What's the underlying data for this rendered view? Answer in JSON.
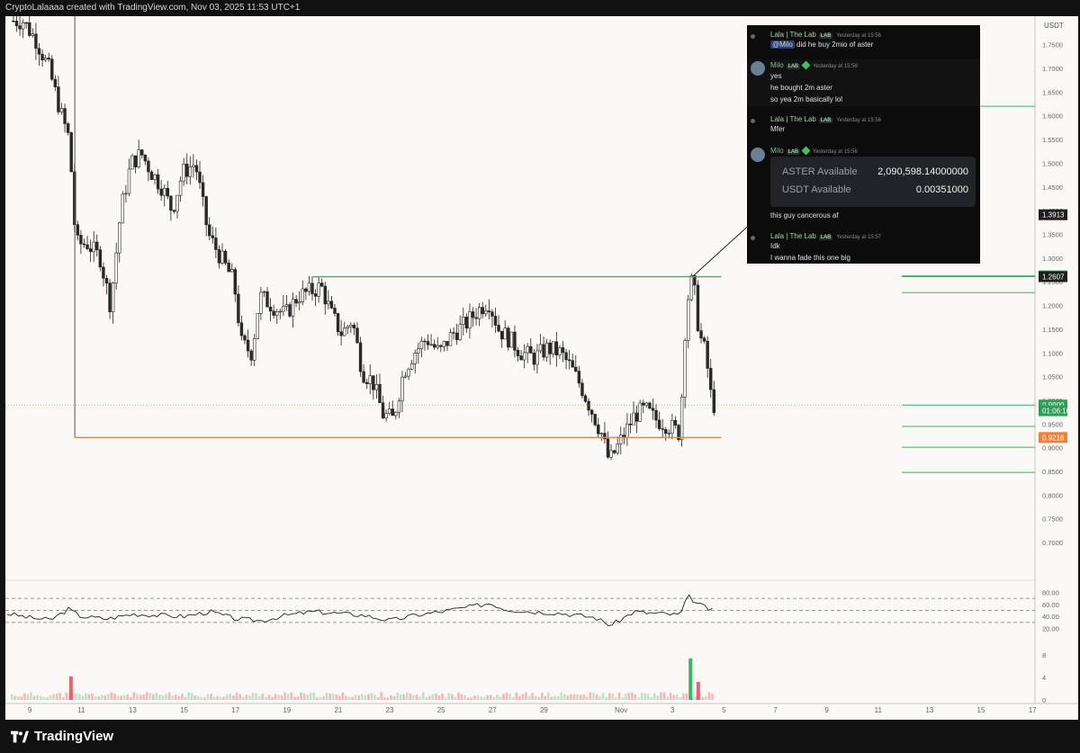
{
  "header": {
    "text": "CryptoLalaaaa created with TradingView.com, Nov 03, 2025 11:53 UTC+1"
  },
  "footer": {
    "brand": "TradingView"
  },
  "chart_data": {
    "type": "candlestick",
    "title": "",
    "y_axis_unit": "USDT",
    "ylim": [
      0.63,
      1.81
    ],
    "y_ticks": [
      "1.7500",
      "1.7000",
      "1.6500",
      "1.6000",
      "1.5500",
      "1.5000",
      "1.4500",
      "1.4000",
      "1.3500",
      "1.3000",
      "1.2500",
      "1.2000",
      "1.1500",
      "1.1000",
      "1.0500",
      "1.0000",
      "0.9500",
      "0.9000",
      "0.8500",
      "0.8000",
      "0.7500",
      "0.7000"
    ],
    "x_ticks": [
      {
        "label": "9",
        "day": 9
      },
      {
        "label": "11",
        "day": 11
      },
      {
        "label": "13",
        "day": 13
      },
      {
        "label": "15",
        "day": 15
      },
      {
        "label": "17",
        "day": 17
      },
      {
        "label": "19",
        "day": 19
      },
      {
        "label": "21",
        "day": 21
      },
      {
        "label": "23",
        "day": 23
      },
      {
        "label": "25",
        "day": 25
      },
      {
        "label": "27",
        "day": 27
      },
      {
        "label": "29",
        "day": 29
      },
      {
        "label": "Nov",
        "day": 32
      },
      {
        "label": "3",
        "day": 34
      },
      {
        "label": "5",
        "day": 36
      },
      {
        "label": "7",
        "day": 38
      },
      {
        "label": "9",
        "day": 40
      },
      {
        "label": "11",
        "day": 42
      },
      {
        "label": "13",
        "day": 44
      },
      {
        "label": "15",
        "day": 46
      },
      {
        "label": "17",
        "day": 48
      }
    ],
    "x_range_days": [
      8.05,
      48.1
    ],
    "price_key_points": [
      [
        8.3,
        1.8
      ],
      [
        8.8,
        1.8
      ],
      [
        9.3,
        1.76
      ],
      [
        9.8,
        1.7
      ],
      [
        10.3,
        1.6
      ],
      [
        10.6,
        1.55
      ],
      [
        10.85,
        1.33
      ],
      [
        11.3,
        1.33
      ],
      [
        11.8,
        1.3
      ],
      [
        12.2,
        1.2
      ],
      [
        12.6,
        1.4
      ],
      [
        13.0,
        1.5
      ],
      [
        13.4,
        1.52
      ],
      [
        13.8,
        1.48
      ],
      [
        14.2,
        1.45
      ],
      [
        14.6,
        1.4
      ],
      [
        15.0,
        1.48
      ],
      [
        15.5,
        1.5
      ],
      [
        16.0,
        1.35
      ],
      [
        16.5,
        1.3
      ],
      [
        17.0,
        1.25
      ],
      [
        17.3,
        1.12
      ],
      [
        17.7,
        1.1
      ],
      [
        18.0,
        1.22
      ],
      [
        18.5,
        1.2
      ],
      [
        19.0,
        1.18
      ],
      [
        19.5,
        1.22
      ],
      [
        20.0,
        1.23
      ],
      [
        20.4,
        1.24
      ],
      [
        20.8,
        1.18
      ],
      [
        21.2,
        1.14
      ],
      [
        21.6,
        1.17
      ],
      [
        22.0,
        1.06
      ],
      [
        22.4,
        1.04
      ],
      [
        22.8,
        0.97
      ],
      [
        23.2,
        0.96
      ],
      [
        23.6,
        1.06
      ],
      [
        24.0,
        1.1
      ],
      [
        24.5,
        1.13
      ],
      [
        25.0,
        1.1
      ],
      [
        25.5,
        1.14
      ],
      [
        26.0,
        1.16
      ],
      [
        26.5,
        1.19
      ],
      [
        26.9,
        1.21
      ],
      [
        27.3,
        1.15
      ],
      [
        27.7,
        1.13
      ],
      [
        28.2,
        1.1
      ],
      [
        28.7,
        1.09
      ],
      [
        29.2,
        1.11
      ],
      [
        29.7,
        1.1
      ],
      [
        30.1,
        1.07
      ],
      [
        30.5,
        1.03
      ],
      [
        30.9,
        0.98
      ],
      [
        31.3,
        0.93
      ],
      [
        31.6,
        0.87
      ],
      [
        31.9,
        0.9
      ],
      [
        32.2,
        0.93
      ],
      [
        32.6,
        0.97
      ],
      [
        33.0,
        0.98
      ],
      [
        33.4,
        0.96
      ],
      [
        33.8,
        0.95
      ],
      [
        34.1,
        0.94
      ],
      [
        34.35,
        0.93
      ],
      [
        34.6,
        1.2
      ],
      [
        34.85,
        1.26
      ],
      [
        35.1,
        1.14
      ],
      [
        35.35,
        1.1
      ],
      [
        35.6,
        0.99
      ]
    ],
    "horizontal_lines": [
      {
        "from_day": 20.0,
        "to_day": 35.9,
        "price": 1.2607,
        "color": "#3ab36b"
      },
      {
        "from_day": 10.75,
        "to_day": 35.9,
        "price": 0.9216,
        "color": "#e8823f"
      }
    ],
    "vertical_line": {
      "day": 10.75,
      "from_price": 0.9216,
      "to_price": 1.81
    },
    "right_levels": [
      1.62,
      1.2624,
      1.2607,
      1.227,
      0.99,
      0.945,
      0.901,
      0.848
    ],
    "price_labels": [
      {
        "text": "1.3913",
        "price": 1.3913,
        "bg": "#1e1e1e",
        "fg": "#ffffff"
      },
      {
        "text": "1.2624",
        "price": 1.2624,
        "bg": "#2e9d55",
        "fg": "#ffffff"
      },
      {
        "text": "1.2607",
        "price": 1.2607,
        "bg": "#1e1e1e",
        "fg": "#ffffff"
      },
      {
        "text": "0.9900",
        "price": 0.99,
        "bg": "#2e9d55",
        "fg": "#ffffff"
      },
      {
        "text": "01:06:10",
        "price": 0.978,
        "bg": "#2e9d55",
        "fg": "#ffffff"
      },
      {
        "text": "0.9216",
        "price": 0.9216,
        "bg": "#e8823f",
        "fg": "#ffffff"
      }
    ],
    "current_price_line": 0.99,
    "rsi": {
      "ylim": [
        0,
        100
      ],
      "ticks": [
        "80.00",
        "60.00",
        "40.00",
        "20.00"
      ],
      "bands": [
        70,
        50,
        30
      ],
      "key_points": [
        [
          8.1,
          45
        ],
        [
          9.0,
          38
        ],
        [
          9.8,
          34
        ],
        [
          10.5,
          52
        ],
        [
          11.0,
          40
        ],
        [
          12.0,
          36
        ],
        [
          13.0,
          44
        ],
        [
          14.0,
          42
        ],
        [
          15.0,
          40
        ],
        [
          16.0,
          48
        ],
        [
          17.0,
          36
        ],
        [
          18.0,
          33
        ],
        [
          19.0,
          42
        ],
        [
          20.0,
          48
        ],
        [
          21.0,
          45
        ],
        [
          22.0,
          42
        ],
        [
          23.0,
          33
        ],
        [
          24.0,
          42
        ],
        [
          25.0,
          48
        ],
        [
          26.0,
          55
        ],
        [
          26.9,
          62
        ],
        [
          27.5,
          52
        ],
        [
          28.5,
          48
        ],
        [
          29.5,
          46
        ],
        [
          30.3,
          42
        ],
        [
          31.0,
          38
        ],
        [
          31.6,
          25
        ],
        [
          32.0,
          35
        ],
        [
          32.5,
          48
        ],
        [
          33.0,
          46
        ],
        [
          33.8,
          44
        ],
        [
          34.3,
          42
        ],
        [
          34.6,
          74
        ],
        [
          35.0,
          60
        ],
        [
          35.3,
          55
        ],
        [
          35.6,
          48
        ]
      ]
    },
    "volume": {
      "ylim": [
        0,
        8
      ],
      "ticks": [
        "8",
        "4",
        "0"
      ],
      "spikes": [
        {
          "day": 10.6,
          "value": 4.2,
          "color": "#e26470"
        },
        {
          "day": 34.7,
          "value": 7.4,
          "color": "#38b56a"
        },
        {
          "day": 35.0,
          "value": 3.2,
          "color": "#e26470"
        }
      ]
    },
    "arrow": {
      "from_day": 34.8,
      "from_price": 1.262,
      "to_day": 37.6,
      "to_price": 1.4
    }
  },
  "chat": {
    "messages": [
      {
        "user": "Lala | The Lab",
        "badge": "LAB",
        "time": "Yesterday at 15:56",
        "lines": [
          "@Milo did he buy 2mio of aster"
        ]
      },
      {
        "user": "Milo",
        "badge": "LAB",
        "time": "Yesterday at 15:56",
        "lines": [
          "yes",
          "he bought 2m aster",
          "so yea 2m basically lol"
        ]
      },
      {
        "user": "Lala | The Lab",
        "badge": "LAB",
        "time": "Yesterday at 15:56",
        "lines": [
          "Mfer"
        ]
      },
      {
        "user": "Milo",
        "badge": "LAB",
        "time": "Yesterday at 15:56",
        "lines": [
          "this guy cancerous af"
        ]
      },
      {
        "user": "Lala | The Lab",
        "badge": "LAB",
        "time": "Yesterday at 15:57",
        "lines": [
          "Idk",
          "I wanna fade this one big"
        ]
      }
    ],
    "balances": [
      {
        "label": "ASTER Available",
        "value": "2,090,598.14000000"
      },
      {
        "label": "USDT Available",
        "value": "0.00351000"
      }
    ]
  }
}
